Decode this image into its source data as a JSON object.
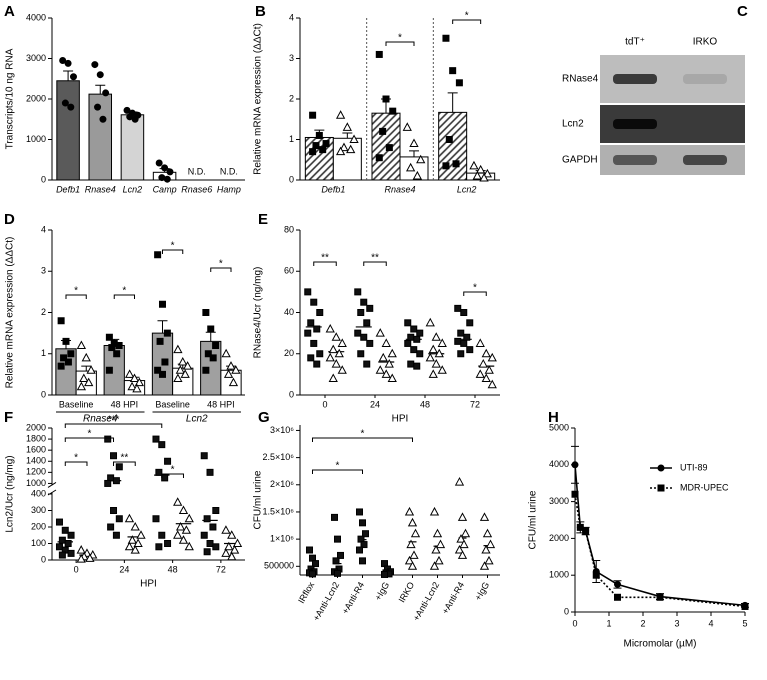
{
  "chart_data": [
    {
      "label": "A",
      "type": "bar",
      "ylabel": "Transcripts/10 ng RNA",
      "italic": "categories",
      "categories": [
        "Defb1",
        "Rnase4",
        "Lcn2",
        "Camp",
        "Rnase6",
        "Hamp"
      ],
      "ylim": [
        0,
        4000
      ],
      "yticks": [
        0,
        1000,
        2000,
        3000,
        4000
      ],
      "series": [
        {
          "colors": [
            "#5a5a5a",
            "#9a9a9a",
            "#d4d4d4",
            "#ffffff",
            null,
            null
          ],
          "point_color": "#000000",
          "marker": "circle",
          "values": [
            2450,
            2120,
            1610,
            190,
            null,
            null
          ],
          "value_labels": [
            null,
            null,
            null,
            null,
            "N.D.",
            "N.D."
          ],
          "errors": [
            240,
            220,
            70,
            90,
            null,
            null
          ],
          "points": [
            [
              2950,
              2880,
              2550,
              1900,
              1800
            ],
            [
              2850,
              2600,
              2150,
              1800,
              1500
            ],
            [
              1720,
              1650,
              1600,
              1560,
              1500
            ],
            [
              420,
              300,
              200,
              60,
              20
            ],
            [],
            []
          ]
        }
      ]
    },
    {
      "label": "B",
      "type": "bar",
      "ylabel": "Relative mRNA expression (ΔΔCt)",
      "italic": "categories",
      "dividers": true,
      "categories": [
        "Defb1",
        "Rnase4",
        "Lcn2"
      ],
      "ylim": [
        0,
        4
      ],
      "yticks": [
        0,
        1,
        2,
        3,
        4
      ],
      "series": [
        {
          "color": "#333333",
          "pattern": "hatch",
          "point_color": "#000000",
          "marker": "square",
          "values": [
            1.05,
            1.65,
            1.67
          ],
          "errors": [
            0.18,
            0.35,
            0.48
          ],
          "points": [
            [
              1.6,
              1.1,
              0.9,
              0.85,
              0.75,
              0.7
            ],
            [
              3.1,
              2.0,
              1.7,
              1.2,
              0.8,
              0.55
            ],
            [
              3.5,
              2.7,
              2.4,
              1.0,
              0.4,
              0.35
            ]
          ]
        },
        {
          "color": "#ffffff",
          "point_color": "#ffffff",
          "marker": "triangle",
          "values": [
            1.03,
            0.57,
            0.17
          ],
          "errors": [
            0.13,
            0.15,
            0.06
          ],
          "points": [
            [
              1.6,
              1.3,
              1.0,
              0.8,
              0.75,
              0.7
            ],
            [
              1.3,
              0.9,
              0.5,
              0.3,
              0.1
            ],
            [
              0.35,
              0.25,
              0.15,
              0.1,
              0.05
            ]
          ]
        }
      ],
      "significance": [
        "*",
        "*"
      ]
    },
    {
      "label": "C",
      "type": "blot",
      "columns": [
        "tdT⁺",
        "IRKO"
      ],
      "rows": [
        "RNase4",
        "Lcn2",
        "GAPDH"
      ]
    },
    {
      "label": "D",
      "type": "bar",
      "ylabel": "Relative mRNA expression (ΔΔCt)",
      "italic": "groups",
      "categories": [
        "Baseline",
        "48 HPI",
        "Baseline",
        "48 HPI"
      ],
      "groups": [
        "Rnase4",
        "Lcn2"
      ],
      "ylim": [
        0,
        4
      ],
      "yticks": [
        0,
        1,
        2,
        3,
        4
      ],
      "series": [
        {
          "color": "#a0a0a0",
          "point_color": "#000000",
          "marker": "square",
          "values": [
            1.12,
            1.2,
            1.5,
            1.3
          ],
          "errors": [
            0.2,
            0.15,
            0.3,
            0.22
          ],
          "points": [
            [
              1.8,
              1.3,
              1.0,
              0.9,
              0.8,
              0.7
            ],
            [
              1.4,
              1.25,
              1.2,
              1.15,
              1.0,
              0.6
            ],
            [
              3.4,
              2.2,
              1.5,
              1.3,
              0.8,
              0.6,
              0.5
            ],
            [
              2.0,
              1.6,
              1.2,
              1.0,
              0.9,
              0.6
            ]
          ]
        },
        {
          "color": "#ffffff",
          "point_color": "#ffffff",
          "marker": "triangle",
          "values": [
            0.58,
            0.35,
            0.65,
            0.6
          ],
          "errors": [
            0.12,
            0.08,
            0.1,
            0.1
          ],
          "points": [
            [
              1.2,
              0.9,
              0.6,
              0.4,
              0.3,
              0.2
            ],
            [
              0.5,
              0.4,
              0.3,
              0.2,
              0.15
            ],
            [
              1.1,
              0.8,
              0.7,
              0.6,
              0.5,
              0.4
            ],
            [
              1.0,
              0.7,
              0.6,
              0.5,
              0.3
            ]
          ]
        }
      ],
      "significance": [
        "*",
        "*",
        "*",
        "*"
      ]
    },
    {
      "label": "E",
      "type": "dot",
      "ylabel": "RNase4/Ucr (ng/mg)",
      "xlabel": "HPI",
      "categories": [
        "0",
        "24",
        "48",
        "72"
      ],
      "ylim": [
        0,
        80
      ],
      "yticks": [
        0,
        20,
        40,
        60,
        80
      ],
      "series": [
        {
          "color": "#111111",
          "marker": "square",
          "values": [
            33,
            33,
            27,
            27
          ],
          "points": [
            [
              50,
              45,
              40,
              35,
              32,
              30,
              25,
              20,
              18,
              15
            ],
            [
              50,
              45,
              42,
              40,
              35,
              30,
              28,
              25,
              20,
              15
            ],
            [
              35,
              32,
              30,
              28,
              27,
              25,
              22,
              20,
              15,
              14
            ],
            [
              42,
              40,
              35,
              30,
              28,
              26,
              25,
              22,
              20
            ]
          ]
        },
        {
          "color": "#ffffff",
          "marker": "triangle",
          "values": [
            21,
            16,
            20,
            14
          ],
          "points": [
            [
              32,
              28,
              25,
              22,
              20,
              18,
              15,
              12,
              8
            ],
            [
              30,
              25,
              20,
              18,
              15,
              12,
              10,
              8
            ],
            [
              35,
              28,
              25,
              22,
              20,
              18,
              15,
              12,
              10
            ],
            [
              25,
              20,
              18,
              15,
              12,
              10,
              8,
              5
            ]
          ]
        }
      ],
      "significance": [
        "**",
        "**",
        "*"
      ]
    },
    {
      "label": "F",
      "type": "dot",
      "ylabel": "Lcn2/Ucr (ng/mg)",
      "xlabel": "HPI",
      "categories": [
        "0",
        "24",
        "48",
        "72"
      ],
      "ylim": [
        0,
        2000
      ],
      "ybreak": [
        400,
        1000
      ],
      "yticks": [
        0,
        100,
        200,
        300,
        400,
        1000,
        1200,
        1400,
        1600,
        1800,
        2000
      ],
      "series": [
        {
          "color": "#111111",
          "marker": "square",
          "values": [
            110,
            1050,
            1150,
            240
          ],
          "points": [
            [
              230,
              180,
              150,
              120,
              100,
              80,
              60,
              40,
              30
            ],
            [
              1800,
              1500,
              1300,
              1100,
              1050,
              1000,
              300,
              250,
              200,
              150
            ],
            [
              1800,
              1700,
              1400,
              1200,
              1100,
              250,
              150,
              100,
              80
            ],
            [
              1500,
              1200,
              300,
              250,
              200,
              150,
              100,
              80,
              50
            ]
          ]
        },
        {
          "color": "#ffffff",
          "marker": "triangle",
          "values": [
            30,
            140,
            220,
            100
          ],
          "points": [
            [
              60,
              40,
              30,
              20,
              10,
              5
            ],
            [
              250,
              200,
              150,
              120,
              100,
              80,
              60
            ],
            [
              350,
              300,
              250,
              200,
              180,
              150,
              120,
              80
            ],
            [
              180,
              150,
              100,
              80,
              60,
              40,
              20
            ]
          ]
        }
      ],
      "significance": [
        "*",
        "*",
        "***",
        "**",
        "*"
      ]
    },
    {
      "label": "G",
      "type": "dot",
      "ylabel": "CFU/ml urine",
      "rotated_categories": true,
      "categories": [
        "IRflox",
        "+Anti-Lcn2",
        "+Anti-R4",
        "+IgG",
        "IRKO",
        "+Anti-Lcn2",
        "+Anti-R4",
        "+IgG"
      ],
      "ylim": [
        340000,
        3100000
      ],
      "yticks": [
        500000,
        {
          "value": 1000000,
          "label": "1×10⁶"
        },
        {
          "value": 1500000,
          "label": "1.5×10⁶"
        },
        {
          "value": 2000000,
          "label": "2×10⁶"
        },
        {
          "value": 2500000,
          "label": "2.5×10⁶"
        },
        {
          "value": 3000000,
          "label": "3×10⁶"
        }
      ],
      "series": [
        {
          "color": "#111111",
          "marker": "square",
          "values": [
            380000,
            550000,
            990000,
            330000,
            null,
            null,
            null,
            null
          ],
          "points": [
            [
              800000,
              650000,
              550000,
              450000,
              400000,
              380000,
              360000
            ],
            [
              1400000,
              1000000,
              700000,
              600000,
              450000,
              400000,
              370000
            ],
            [
              1500000,
              1300000,
              1100000,
              1000000,
              900000,
              800000,
              600000
            ],
            [
              550000,
              450000,
              400000,
              380000,
              360000,
              350000
            ],
            [],
            [],
            [],
            []
          ]
        },
        {
          "color": "#ffffff",
          "marker": "triangle",
          "values": [
            null,
            null,
            null,
            null,
            950000,
            870000,
            1020000,
            880000
          ],
          "points": [
            [],
            [],
            [],
            [],
            [
              1500000,
              1300000,
              1100000,
              900000,
              700000,
              600000,
              500000
            ],
            [
              1500000,
              1100000,
              900000,
              800000,
              600000,
              500000
            ],
            [
              2050000,
              1400000,
              1100000,
              1000000,
              900000,
              800000,
              700000
            ],
            [
              1400000,
              1100000,
              900000,
              800000,
              600000,
              500000
            ]
          ]
        }
      ],
      "significance": [
        "*",
        "*"
      ]
    },
    {
      "label": "H",
      "type": "line",
      "ylabel": "CFU/ml urine",
      "xlabel": "Micromolar (µM)",
      "legend": "upper right",
      "x": [
        0,
        0.156,
        0.3125,
        0.625,
        1.25,
        2.5,
        5
      ],
      "xlim": [
        0,
        5
      ],
      "xticks": [
        0,
        1,
        2,
        3,
        4,
        5
      ],
      "ylim": [
        0,
        5000
      ],
      "yticks": [
        0,
        1000,
        2000,
        3000,
        4000,
        5000
      ],
      "series": [
        {
          "name": "UTI-89",
          "color": "#000000",
          "marker": "circle",
          "dash": false,
          "values": [
            4000,
            2300,
            2200,
            1100,
            750,
            420,
            180
          ],
          "errors": [
            500,
            150,
            100,
            300,
            100,
            80,
            50
          ]
        },
        {
          "name": "MDR-UPEC",
          "color": "#000000",
          "marker": "square",
          "dash": true,
          "values": [
            3200,
            2300,
            2200,
            1000,
            400,
            400,
            150
          ]
        }
      ]
    }
  ]
}
